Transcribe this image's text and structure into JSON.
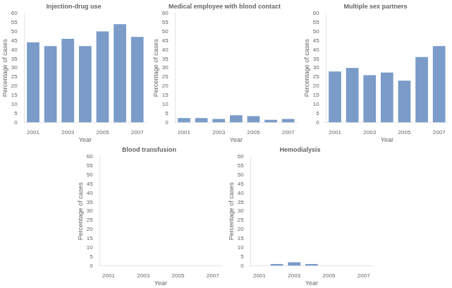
{
  "chart_data": [
    {
      "type": "bar",
      "title": "Injection-drug use",
      "categories": [
        "2001",
        null,
        "2003",
        null,
        "2005",
        null,
        "2007"
      ],
      "values": [
        44,
        42,
        46,
        42,
        50,
        54,
        47
      ],
      "color": "#7b9bc8",
      "xlabel": "Year",
      "ylabel": "Percentage of cases",
      "ylim": [
        0,
        60
      ],
      "yticks": [
        0,
        5,
        10,
        15,
        20,
        25,
        30,
        35,
        40,
        45,
        50,
        55,
        60
      ],
      "grid": false
    },
    {
      "type": "bar",
      "title": "Medical employee with blood contact",
      "categories": [
        "2001",
        null,
        "2003",
        null,
        "2005",
        null,
        "2007"
      ],
      "values": [
        2.5,
        2.5,
        2,
        4,
        3.5,
        1.5,
        2
      ],
      "color": "#7b9bc8",
      "xlabel": "Year",
      "ylabel": "Percentage of cases",
      "ylim": [
        0,
        60
      ],
      "yticks": [
        0,
        5,
        10,
        15,
        20,
        25,
        30,
        35,
        40,
        45,
        50,
        55,
        60
      ],
      "grid": false
    },
    {
      "type": "bar",
      "title": "Multiple sex partners",
      "categories": [
        "2001",
        null,
        "2003",
        null,
        "2005",
        null,
        "2007"
      ],
      "values": [
        28,
        30,
        26,
        27.5,
        23,
        36,
        42
      ],
      "color": "#7b9bc8",
      "xlabel": "Year",
      "ylabel": "Percentage of cases",
      "ylim": [
        0,
        60
      ],
      "yticks": [
        0,
        5,
        10,
        15,
        20,
        25,
        30,
        35,
        40,
        45,
        50,
        55,
        60
      ],
      "grid": false
    },
    {
      "type": "bar",
      "title": "Blood transfusion",
      "categories": [
        "2001",
        null,
        "2003",
        null,
        "2005",
        null,
        "2007"
      ],
      "values": [
        0,
        0,
        0,
        0,
        0,
        0,
        0
      ],
      "color": "#7b9bc8",
      "xlabel": "Year",
      "ylabel": "Percentage of cases",
      "ylim": [
        0,
        60
      ],
      "yticks": [
        0,
        5,
        10,
        15,
        20,
        25,
        30,
        35,
        40,
        45,
        50,
        55,
        60
      ],
      "grid": false
    },
    {
      "type": "bar",
      "title": "Hemodialysis",
      "categories": [
        "2001",
        null,
        "2003",
        null,
        "2005",
        null,
        "2007"
      ],
      "values": [
        0,
        1,
        2,
        1,
        0,
        0,
        0
      ],
      "color": "#7b9bc8",
      "xlabel": "Year",
      "ylabel": "Percentage of cases",
      "ylim": [
        0,
        60
      ],
      "yticks": [
        0,
        5,
        10,
        15,
        20,
        25,
        30,
        35,
        40,
        45,
        50,
        55,
        60
      ],
      "grid": false
    }
  ]
}
